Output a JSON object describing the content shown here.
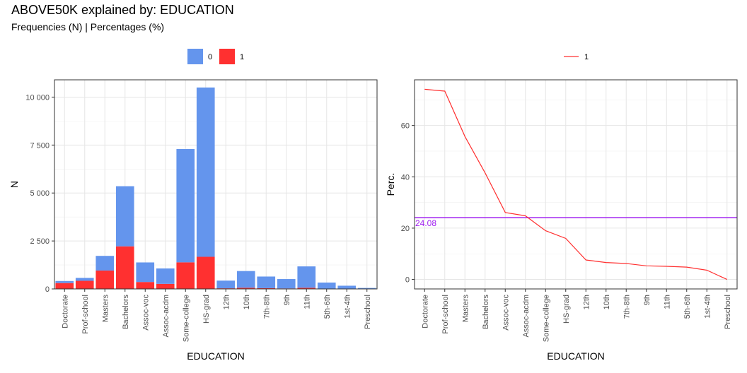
{
  "title": "ABOVE50K explained by: EDUCATION",
  "subtitle": "Frequencies (N) | Percentages (%)",
  "colors": {
    "class0": "#6495ED",
    "class1": "#FF3030",
    "reference": "#A020F0"
  },
  "chart_data": [
    {
      "type": "bar",
      "stacked": true,
      "xlabel": "EDUCATION",
      "ylabel": "N",
      "ylim": [
        0,
        10900
      ],
      "yticks": [
        0,
        2500,
        5000,
        7500,
        10000
      ],
      "ytick_labels": [
        "0",
        "2 500",
        "5 000",
        "7 500",
        "10 000"
      ],
      "legend_position": "top",
      "categories": [
        "Doctorate",
        "Prof-school",
        "Masters",
        "Bachelors",
        "Assoc-voc",
        "Assoc-acdm",
        "Some-college",
        "HS-grad",
        "12th",
        "10th",
        "7th-8th",
        "9th",
        "11th",
        "5th-6th",
        "1st-4th",
        "Preschool"
      ],
      "series": [
        {
          "name": "0",
          "values": [
            107,
            153,
            764,
            3134,
            1021,
            802,
            5904,
            8826,
            400,
            871,
            606,
            487,
            1115,
            317,
            162,
            51
          ]
        },
        {
          "name": "1",
          "values": [
            306,
            423,
            959,
            2221,
            361,
            265,
            1387,
            1675,
            33,
            62,
            40,
            27,
            60,
            16,
            6,
            0
          ]
        }
      ],
      "grid": true
    },
    {
      "type": "line",
      "xlabel": "EDUCATION",
      "ylabel": "Perc.",
      "ylim": [
        -3.7,
        77.8
      ],
      "yticks": [
        0,
        20,
        40,
        60
      ],
      "ytick_labels": [
        "0",
        "20",
        "40",
        "60"
      ],
      "legend_position": "top",
      "categories": [
        "Doctorate",
        "Prof-school",
        "Masters",
        "Bachelors",
        "Assoc-voc",
        "Assoc-acdm",
        "Some-college",
        "HS-grad",
        "12th",
        "10th",
        "7th-8th",
        "9th",
        "11th",
        "5th-6th",
        "1st-4th",
        "Preschool"
      ],
      "series": [
        {
          "name": "1",
          "values": [
            74.1,
            73.4,
            55.7,
            41.5,
            26.1,
            24.8,
            19.0,
            16.0,
            7.6,
            6.6,
            6.2,
            5.3,
            5.1,
            4.8,
            3.6,
            0.0
          ]
        }
      ],
      "reference_line": {
        "value": 24.08,
        "label": "24.08"
      },
      "grid": true
    }
  ]
}
